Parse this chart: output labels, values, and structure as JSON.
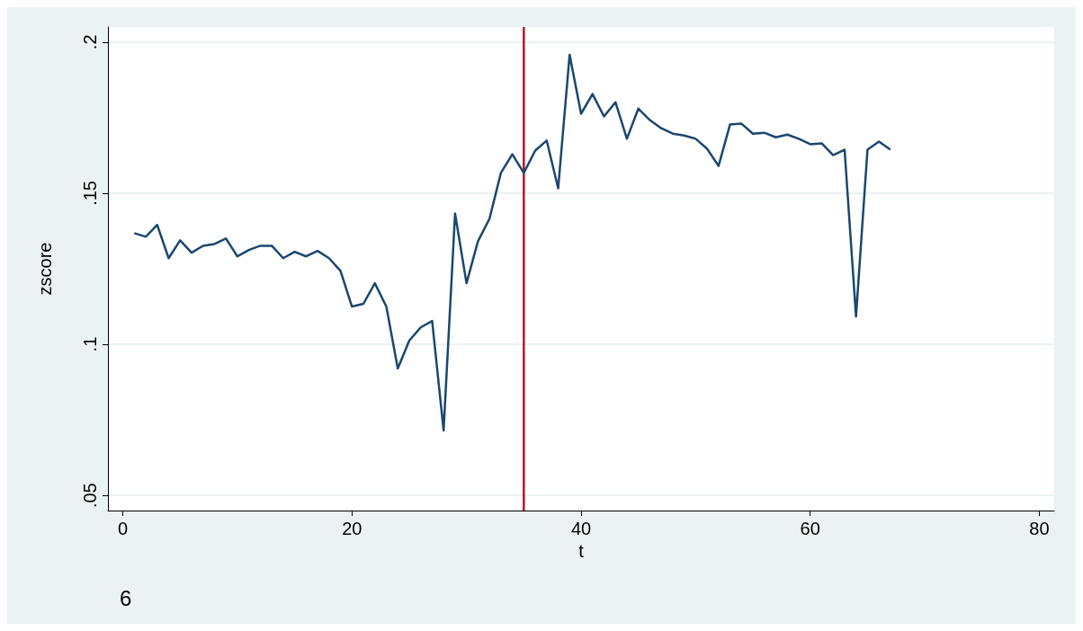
{
  "chart_data": {
    "type": "line",
    "xlabel": "t",
    "ylabel": "zscore",
    "x": [
      1,
      2,
      3,
      4,
      5,
      6,
      7,
      8,
      9,
      10,
      11,
      12,
      13,
      14,
      15,
      16,
      17,
      18,
      19,
      20,
      21,
      22,
      23,
      24,
      25,
      26,
      27,
      28,
      29,
      30,
      31,
      32,
      33,
      34,
      35,
      36,
      37,
      38,
      39,
      40,
      41,
      42,
      43,
      44,
      45,
      46,
      47,
      48,
      49,
      50,
      51,
      52,
      53,
      54,
      55,
      56,
      57,
      58,
      59,
      60,
      61,
      62,
      63,
      64,
      65,
      66,
      67
    ],
    "series": [
      {
        "color": "#1a476f",
        "values": [
          0.1368,
          0.1356,
          0.1395,
          0.1285,
          0.1344,
          0.1303,
          0.1326,
          0.1332,
          0.135,
          0.1291,
          0.1312,
          0.1326,
          0.1326,
          0.1285,
          0.1306,
          0.1291,
          0.1309,
          0.1285,
          0.1243,
          0.1125,
          0.1134,
          0.1202,
          0.1125,
          0.092,
          0.1012,
          0.1056,
          0.1077,
          0.0715,
          0.1433,
          0.1202,
          0.1341,
          0.1415,
          0.1567,
          0.1629,
          0.1567,
          0.1641,
          0.1674,
          0.1516,
          0.1958,
          0.1763,
          0.1828,
          0.1754,
          0.1801,
          0.168,
          0.178,
          0.1742,
          0.1715,
          0.1697,
          0.1691,
          0.168,
          0.1647,
          0.159,
          0.1727,
          0.173,
          0.1697,
          0.17,
          0.1685,
          0.1694,
          0.168,
          0.1662,
          0.1665,
          0.1626,
          0.1644,
          0.1092,
          0.1644,
          0.1671,
          0.1644
        ]
      }
    ],
    "xlim": [
      -1.3,
      81.3
    ],
    "xticks": [
      0,
      20,
      40,
      60,
      80
    ],
    "ylim": [
      0.045,
      0.205
    ],
    "yticks": [
      {
        "value": 0.05,
        "label": ".05"
      },
      {
        "value": 0.1,
        "label": ".1"
      },
      {
        "value": 0.15,
        "label": ".15"
      },
      {
        "value": 0.2,
        "label": ".2"
      }
    ],
    "ref_lines": [
      {
        "axis": "x",
        "value": 35,
        "color": "#b2182b"
      }
    ],
    "grid": "y",
    "marker": "none",
    "line_style": "solid",
    "annotations": [
      "6"
    ]
  }
}
